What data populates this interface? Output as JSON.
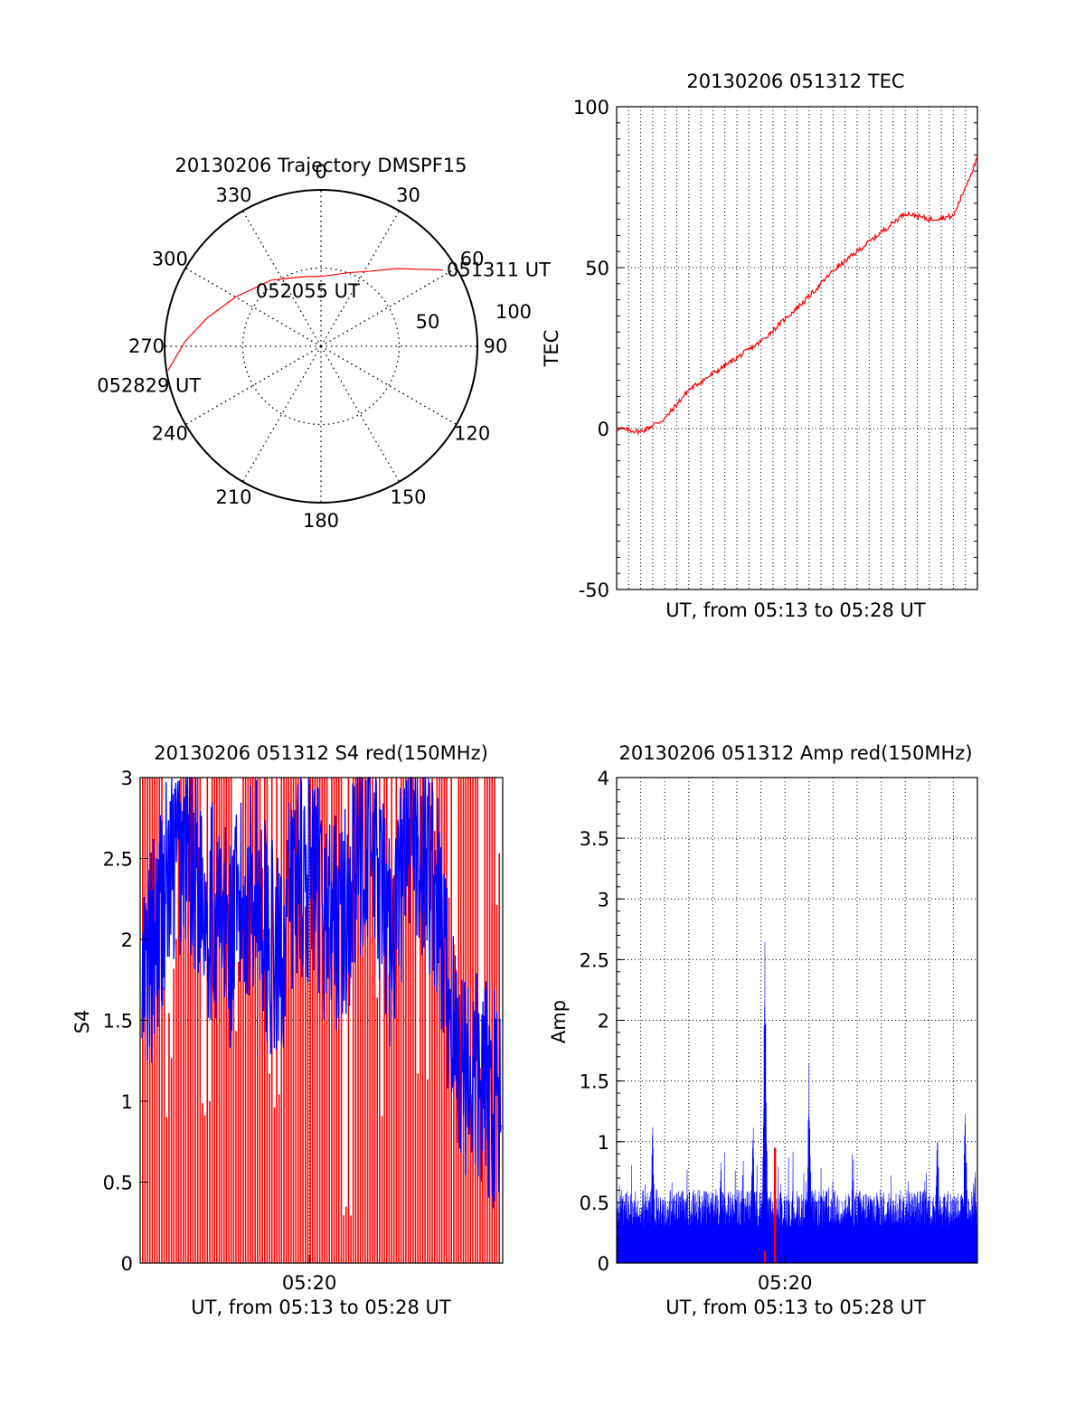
{
  "chart_data": [
    {
      "type": "polar",
      "title": "20130206 Trajectory DMSPF15",
      "angle_ticks": [
        "0",
        "30",
        "60",
        "90",
        "120",
        "150",
        "180",
        "210",
        "240",
        "270",
        "300",
        "330"
      ],
      "radial_ticks": [
        "50",
        "100"
      ],
      "grid": true,
      "series": [
        {
          "color": "#ff0000",
          "points": [
            {
              "az": 58,
              "zen": 92
            },
            {
              "az": 52,
              "zen": 80
            },
            {
              "az": 44,
              "zen": 69
            },
            {
              "az": 34,
              "zen": 58
            },
            {
              "az": 20,
              "zen": 50
            },
            {
              "az": 3,
              "zen": 45
            },
            {
              "az": 345,
              "zen": 46
            },
            {
              "az": 323,
              "zen": 53
            },
            {
              "az": 300,
              "zen": 63
            },
            {
              "az": 284,
              "zen": 75
            },
            {
              "az": 272,
              "zen": 87
            },
            {
              "az": 261,
              "zen": 99
            }
          ]
        }
      ],
      "annotations": [
        {
          "text": "051311 UT",
          "az": 58,
          "zen": 92
        },
        {
          "text": "052055 UT",
          "az": 338,
          "zen": 38
        },
        {
          "text": "052829 UT",
          "az": 250,
          "zen": 70
        }
      ]
    },
    {
      "type": "line",
      "title": "20130206 051312 TEC",
      "xlabel": "UT, from 05:13 to 05:28 UT",
      "ylabel": "TEC",
      "xlim": [
        "05:13",
        "05:28"
      ],
      "ylim": [
        -50,
        100
      ],
      "yticks": [
        "-50",
        "0",
        "50",
        "100"
      ],
      "grid": true,
      "series": [
        {
          "color": "#ff0000",
          "x": [
            "05:13",
            "05:14",
            "05:15",
            "05:16",
            "05:17",
            "05:18",
            "05:19",
            "05:20",
            "05:21",
            "05:22",
            "05:23",
            "05:24",
            "05:25",
            "05:26",
            "05:27",
            "05:28"
          ],
          "y": [
            0,
            -1,
            3,
            12,
            17,
            22,
            27,
            34,
            41,
            49,
            55,
            61,
            67,
            65,
            66,
            84
          ]
        }
      ]
    },
    {
      "type": "bar",
      "title": "20130206 051312 S4 red(150MHz)",
      "xlabel": "UT, from 05:13 to 05:28 UT",
      "ylabel": "S4",
      "xlim": [
        "05:13",
        "05:28"
      ],
      "xticks": [
        "05:20"
      ],
      "ylim": [
        0,
        3
      ],
      "yticks": [
        "0",
        "0.5",
        "1",
        "1.5",
        "2",
        "2.5",
        "3"
      ],
      "grid": true,
      "series": [
        {
          "color": "#ff0000",
          "description_values": [
            3,
            1.5,
            3,
            0.8,
            3,
            1.5,
            3,
            1.2,
            3,
            2.0,
            3,
            0.4,
            3,
            1.5,
            3,
            1.0,
            3,
            3,
            1.2,
            3
          ]
        },
        {
          "color": "#0000ff",
          "description_values": [
            1.6,
            2.3,
            2.6,
            2.2,
            2.0,
            2.4,
            1.8,
            2.5,
            2.2,
            2.1,
            2.7,
            2.0,
            2.6,
            2.4,
            1.3,
            1.1,
            1.0
          ]
        }
      ]
    },
    {
      "type": "bar",
      "title": "20130206 051312 Amp red(150MHz)",
      "xlabel": "UT, from 05:13 to 05:28 UT",
      "ylabel": "Amp",
      "xlim": [
        "05:13",
        "05:28"
      ],
      "xticks": [
        "05:20"
      ],
      "ylim": [
        0,
        4
      ],
      "yticks": [
        "0",
        "0.5",
        "1",
        "1.5",
        "2",
        "2.5",
        "3",
        "3.5",
        "4"
      ],
      "grid": true,
      "series": [
        {
          "color": "#0000ff",
          "base_level": 0.55,
          "peaks": [
            {
              "x": "05:14:30",
              "y": 1.25
            },
            {
              "x": "05:17:20",
              "y": 1.0
            },
            {
              "x": "05:18:40",
              "y": 1.35
            },
            {
              "x": "05:19:10",
              "y": 3.05
            },
            {
              "x": "05:21:00",
              "y": 1.7
            },
            {
              "x": "05:26:20",
              "y": 1.35
            },
            {
              "x": "05:27:30",
              "y": 1.55
            }
          ]
        },
        {
          "color": "#ff0000",
          "peaks": [
            {
              "x": "05:19:10",
              "y": 0.1
            },
            {
              "x": "05:19:35",
              "y": 0.95
            }
          ]
        }
      ]
    }
  ]
}
